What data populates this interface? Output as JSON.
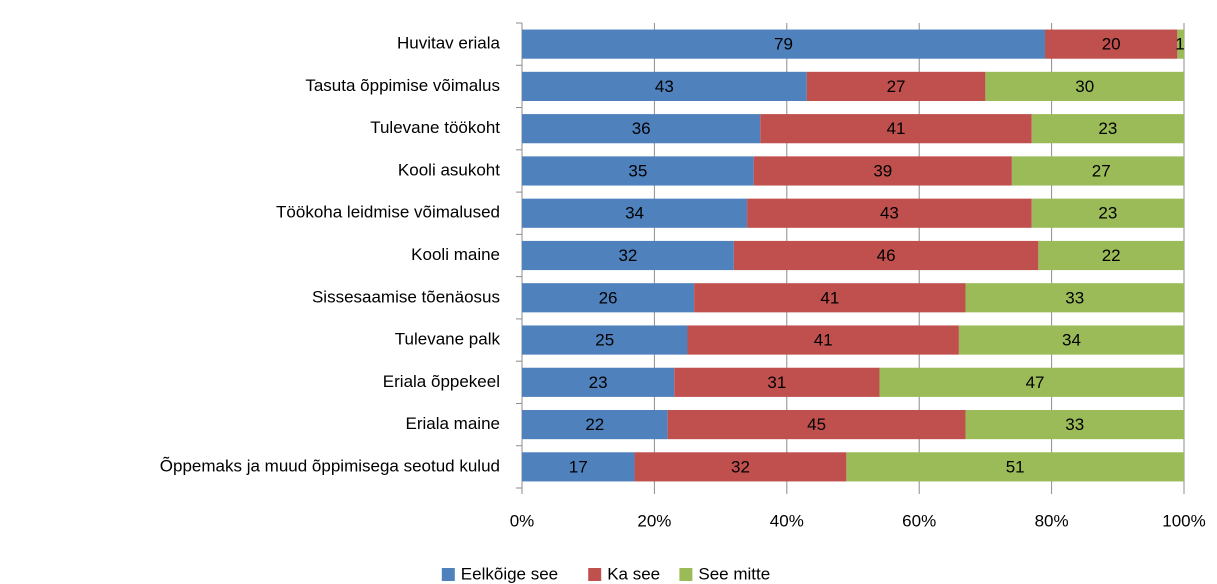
{
  "chart_data": {
    "type": "bar",
    "orientation": "horizontal",
    "stacked": true,
    "categories": [
      "Huvitav eriala",
      "Tasuta õppimise võimalus",
      "Tulevane töökoht",
      "Kooli asukoht",
      "Töökoha leidmise võimalused",
      "Kooli maine",
      "Sissesaamise tõenäosus",
      "Tulevane palk",
      "Eriala õppekeel",
      "Eriala maine",
      "Õppemaks ja muud õppimisega seotud kulud"
    ],
    "series": [
      {
        "name": "Eelkõige see",
        "color": "#4f81bd",
        "values": [
          79,
          43,
          36,
          35,
          34,
          32,
          26,
          25,
          23,
          22,
          17
        ]
      },
      {
        "name": "Ka see",
        "color": "#c0504d",
        "values": [
          20,
          27,
          41,
          39,
          43,
          46,
          41,
          41,
          31,
          45,
          32
        ]
      },
      {
        "name": "See mitte",
        "color": "#9bbb59",
        "values": [
          1,
          30,
          23,
          27,
          23,
          22,
          33,
          34,
          47,
          33,
          51
        ]
      }
    ],
    "xlim": [
      0,
      100
    ],
    "xticks": [
      {
        "value": 0,
        "label": "0%"
      },
      {
        "value": 20,
        "label": "20%"
      },
      {
        "value": 40,
        "label": "40%"
      },
      {
        "value": 60,
        "label": "60%"
      },
      {
        "value": 80,
        "label": "80%"
      },
      {
        "value": 100,
        "label": "100%"
      }
    ],
    "grid": true,
    "legend": "bottom",
    "data_labels": true
  }
}
